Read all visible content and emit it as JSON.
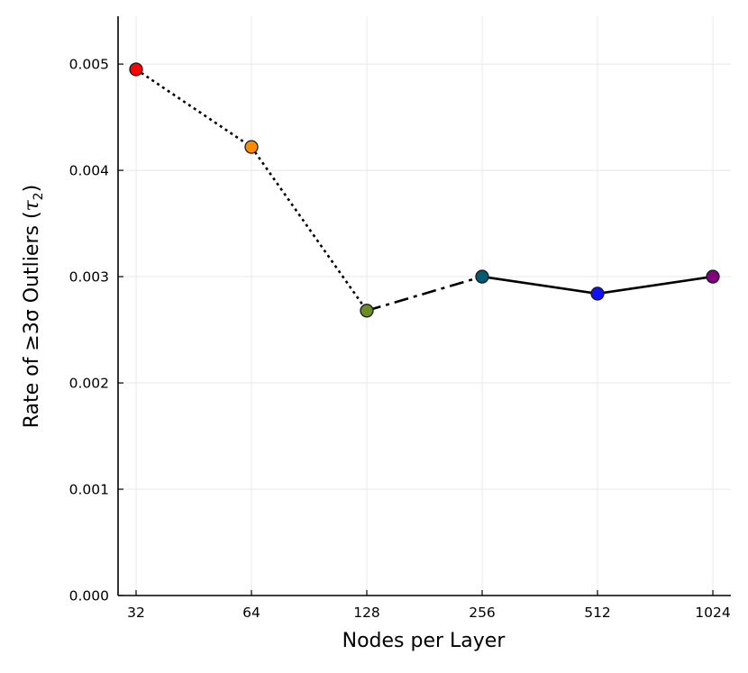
{
  "chart_data": {
    "type": "line",
    "xlabel": "Nodes per Layer",
    "ylabel": {
      "prefix": "Rate of ≥3σ Outliers (",
      "symbol": "τ",
      "subscript": "2",
      "suffix": ")"
    },
    "x_scale": "log2",
    "categories": [
      "32",
      "64",
      "128",
      "256",
      "512",
      "1024"
    ],
    "x": [
      32,
      64,
      128,
      256,
      512,
      1024
    ],
    "y_ticks": [
      "0.000",
      "0.001",
      "0.002",
      "0.003",
      "0.004",
      "0.005"
    ],
    "ylim": [
      0,
      0.00545
    ],
    "grid": true,
    "points": [
      {
        "x": 32,
        "y": 0.00495,
        "color": "#ff0000"
      },
      {
        "x": 64,
        "y": 0.00422,
        "color": "#ff8c00"
      },
      {
        "x": 128,
        "y": 0.00268,
        "color": "#6b8e23"
      },
      {
        "x": 256,
        "y": 0.003,
        "color": "#005a72"
      },
      {
        "x": 512,
        "y": 0.00284,
        "color": "#1010ff"
      },
      {
        "x": 1024,
        "y": 0.003,
        "color": "#800080"
      }
    ],
    "segments": [
      {
        "from": 0,
        "to": 1,
        "style": "dotted"
      },
      {
        "from": 1,
        "to": 2,
        "style": "dotted"
      },
      {
        "from": 2,
        "to": 3,
        "style": "dashdot"
      },
      {
        "from": 3,
        "to": 4,
        "style": "solid"
      },
      {
        "from": 4,
        "to": 5,
        "style": "solid"
      }
    ]
  }
}
